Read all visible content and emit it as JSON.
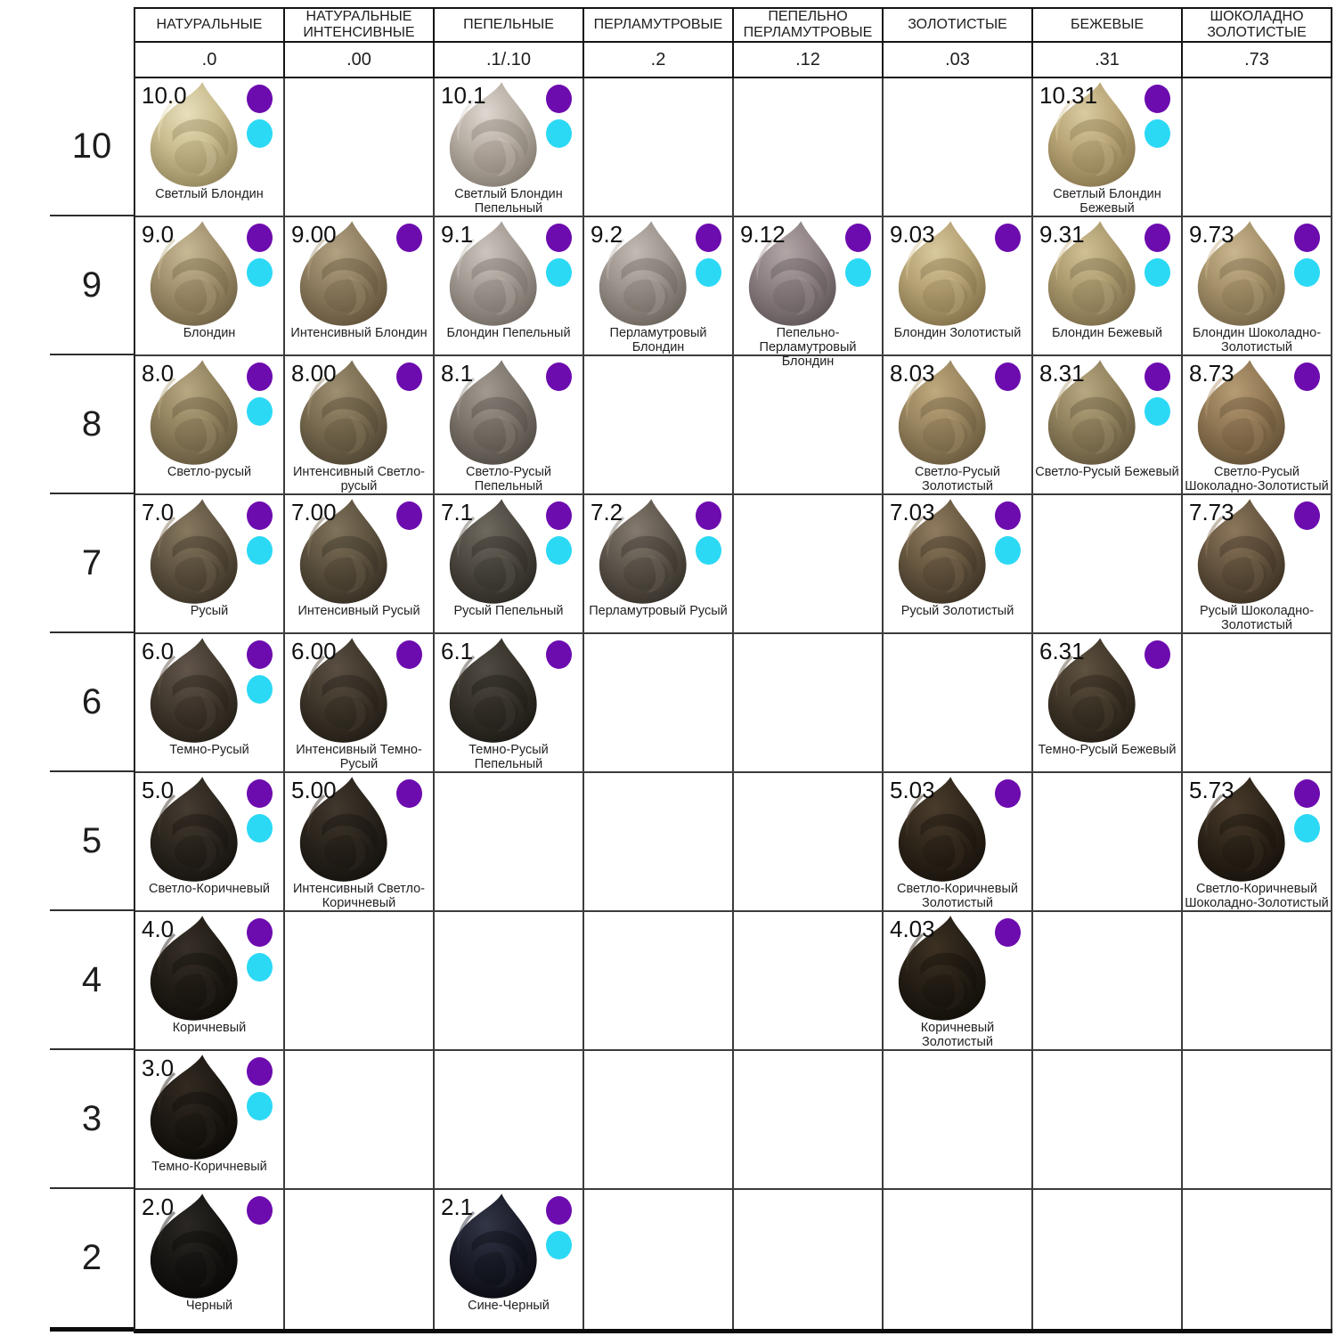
{
  "chart_data": {
    "type": "table",
    "description_visible_text_only": true,
    "dot_colors": {
      "purple": "#6C0BAE",
      "cyan": "#2BD9F5"
    },
    "columns": [
      {
        "family": "НАТУРАЛЬНЫЕ",
        "code": ".0"
      },
      {
        "family": "НАТУРАЛЬНЫЕ ИНТЕНСИВНЫЕ",
        "code": ".00"
      },
      {
        "family": "ПЕПЕЛЬНЫЕ",
        "code": ".1/.10"
      },
      {
        "family": "ПЕРЛАМУТРОВЫЕ",
        "code": ".2"
      },
      {
        "family": "ПЕПЕЛЬНО ПЕРЛАМУТРОВЫЕ",
        "code": ".12"
      },
      {
        "family": "ЗОЛОТИСТЫЕ",
        "code": ".03"
      },
      {
        "family": "БЕЖЕВЫЕ",
        "code": ".31"
      },
      {
        "family": "ШОКОЛАДНО ЗОЛОТИСТЫЕ",
        "code": ".73"
      }
    ],
    "row_levels": [
      "10",
      "9",
      "8",
      "7",
      "6",
      "5",
      "4",
      "3",
      "2"
    ],
    "cells": [
      {
        "level": "10",
        "col": 0,
        "code": "10.0",
        "label": "Светлый Блондин",
        "dots": [
          "purple",
          "cyan"
        ],
        "swatch": {
          "light": "#E8E0BC",
          "base": "#C9BC8F",
          "dark": "#8F8158"
        }
      },
      {
        "level": "10",
        "col": 2,
        "code": "10.1",
        "label": "Светлый Блондин Пепельный",
        "dots": [
          "purple",
          "cyan"
        ],
        "swatch": {
          "light": "#DED8D1",
          "base": "#B8AFA5",
          "dark": "#82796E"
        }
      },
      {
        "level": "10",
        "col": 6,
        "code": "10.31",
        "label": "Светлый Блондин Бежевый",
        "dots": [
          "purple",
          "cyan"
        ],
        "swatch": {
          "light": "#DACBA2",
          "base": "#B9A678",
          "dark": "#85734B"
        }
      },
      {
        "level": "9",
        "col": 0,
        "code": "9.0",
        "label": "Блондин",
        "dots": [
          "purple",
          "cyan"
        ],
        "swatch": {
          "light": "#C8B995",
          "base": "#A3926F",
          "dark": "#6F6143"
        }
      },
      {
        "level": "9",
        "col": 1,
        "code": "9.00",
        "label": "Интенсивный Блондин",
        "dots": [
          "purple"
        ],
        "swatch": {
          "light": "#B2A282",
          "base": "#8F7E61",
          "dark": "#5E5038"
        }
      },
      {
        "level": "9",
        "col": 2,
        "code": "9.1",
        "label": "Блондин Пепельный",
        "dots": [
          "purple",
          "cyan"
        ],
        "swatch": {
          "light": "#CCC5BE",
          "base": "#A49C94",
          "dark": "#6F6860"
        }
      },
      {
        "level": "9",
        "col": 3,
        "code": "9.2",
        "label": "Перламутровый Блондин",
        "dots": [
          "purple",
          "cyan"
        ],
        "swatch": {
          "light": "#C2BAB3",
          "base": "#9C948D",
          "dark": "#686159"
        }
      },
      {
        "level": "9",
        "col": 4,
        "code": "9.12",
        "label": "Пепельно-Перламутровый Блондин",
        "dots": [
          "purple",
          "cyan"
        ],
        "swatch": {
          "light": "#B3A6A7",
          "base": "#8E8183",
          "dark": "#5C5355"
        }
      },
      {
        "level": "9",
        "col": 5,
        "code": "9.03",
        "label": "Блондин Золотистый",
        "dots": [
          "purple"
        ],
        "swatch": {
          "light": "#D9C99E",
          "base": "#B6A375",
          "dark": "#7F6D47"
        }
      },
      {
        "level": "9",
        "col": 6,
        "code": "9.31",
        "label": "Блондин Бежевый",
        "dots": [
          "purple",
          "cyan"
        ],
        "swatch": {
          "light": "#D0C094",
          "base": "#AC9B6F",
          "dark": "#776746"
        }
      },
      {
        "level": "9",
        "col": 7,
        "code": "9.73",
        "label": "Блондин Шоколадно-Золотистый",
        "dots": [
          "purple",
          "cyan"
        ],
        "swatch": {
          "light": "#C9B68E",
          "base": "#A6926A",
          "dark": "#726245"
        }
      },
      {
        "level": "8",
        "col": 0,
        "code": "8.0",
        "label": "Светло-русый",
        "dots": [
          "purple",
          "cyan"
        ],
        "swatch": {
          "light": "#B8A983",
          "base": "#92835F",
          "dark": "#60543B"
        }
      },
      {
        "level": "8",
        "col": 1,
        "code": "8.00",
        "label": "Интенсивный Светло-русый",
        "dots": [
          "purple"
        ],
        "swatch": {
          "light": "#9E8F71",
          "base": "#7B6D52",
          "dark": "#4C4230"
        }
      },
      {
        "level": "8",
        "col": 2,
        "code": "8.1",
        "label": "Светло-Русый Пепельный",
        "dots": [
          "purple"
        ],
        "swatch": {
          "light": "#A29A91",
          "base": "#7E776E",
          "dark": "#4E4841"
        }
      },
      {
        "level": "8",
        "col": 5,
        "code": "8.03",
        "label": "Светло-Русый Золотистый",
        "dots": [
          "purple"
        ],
        "swatch": {
          "light": "#BFA97E",
          "base": "#9A8660",
          "dark": "#66573B"
        }
      },
      {
        "level": "8",
        "col": 6,
        "code": "8.31",
        "label": "Светло-Русый Бежевый",
        "dots": [
          "purple",
          "cyan"
        ],
        "swatch": {
          "light": "#B8A882",
          "base": "#93845F",
          "dark": "#5F533A"
        }
      },
      {
        "level": "8",
        "col": 7,
        "code": "8.73",
        "label": "Светло-Русый Шоколадно-Золотистый",
        "dots": [
          "purple"
        ],
        "swatch": {
          "light": "#B69C74",
          "base": "#927955",
          "dark": "#5F4D34"
        }
      },
      {
        "level": "7",
        "col": 0,
        "code": "7.0",
        "label": "Русый",
        "dots": [
          "purple",
          "cyan"
        ],
        "swatch": {
          "light": "#87785F",
          "base": "#645845",
          "dark": "#372F23"
        }
      },
      {
        "level": "7",
        "col": 1,
        "code": "7.00",
        "label": "Интенсивный Русый",
        "dots": [
          "purple"
        ],
        "swatch": {
          "light": "#80735B",
          "base": "#5E5340",
          "dark": "#332C21"
        }
      },
      {
        "level": "7",
        "col": 2,
        "code": "7.1",
        "label": "Русый Пепельный",
        "dots": [
          "purple",
          "cyan"
        ],
        "swatch": {
          "light": "#6F6A60",
          "base": "#4F4A42",
          "dark": "#292620"
        }
      },
      {
        "level": "7",
        "col": 3,
        "code": "7.2",
        "label": "Перламутровый Русый",
        "dots": [
          "purple",
          "cyan"
        ],
        "swatch": {
          "light": "#847A6F",
          "base": "#60584E",
          "dark": "#332E27"
        }
      },
      {
        "level": "7",
        "col": 5,
        "code": "7.03",
        "label": "Русый Золотистый",
        "dots": [
          "purple",
          "cyan"
        ],
        "swatch": {
          "light": "#907C60",
          "base": "#6A5A42",
          "dark": "#3A3023"
        }
      },
      {
        "level": "7",
        "col": 7,
        "code": "7.73",
        "label": "Русый Шоколадно-Золотистый",
        "dots": [
          "purple"
        ],
        "swatch": {
          "light": "#8C775B",
          "base": "#685741",
          "dark": "#392E21"
        }
      },
      {
        "level": "6",
        "col": 0,
        "code": "6.0",
        "label": "Темно-Русый",
        "dots": [
          "purple",
          "cyan"
        ],
        "swatch": {
          "light": "#61554A",
          "base": "#453C31",
          "dark": "#221D16"
        }
      },
      {
        "level": "6",
        "col": 1,
        "code": "6.00",
        "label": "Интенсивный Темно-Русый",
        "dots": [
          "purple"
        ],
        "swatch": {
          "light": "#5A4F42",
          "base": "#40382C",
          "dark": "#1F1A14"
        }
      },
      {
        "level": "6",
        "col": 2,
        "code": "6.1",
        "label": "Темно-Русый Пепельный",
        "dots": [
          "purple"
        ],
        "swatch": {
          "light": "#4F4A42",
          "base": "#38342C",
          "dark": "#1B1813"
        }
      },
      {
        "level": "6",
        "col": 6,
        "code": "6.31",
        "label": "Темно-Русый Бежевый",
        "dots": [
          "purple"
        ],
        "swatch": {
          "light": "#5E5240",
          "base": "#43392B",
          "dark": "#211B13"
        }
      },
      {
        "level": "5",
        "col": 0,
        "code": "5.0",
        "label": "Светло-Коричневый",
        "dots": [
          "purple",
          "cyan"
        ],
        "swatch": {
          "light": "#453C32",
          "base": "#2E2820",
          "dark": "#14110D"
        }
      },
      {
        "level": "5",
        "col": 1,
        "code": "5.00",
        "label": "Интенсивный Светло-Коричневый",
        "dots": [
          "purple"
        ],
        "swatch": {
          "light": "#41382E",
          "base": "#2B251D",
          "dark": "#13100C"
        }
      },
      {
        "level": "5",
        "col": 5,
        "code": "5.03",
        "label": "Светло-Коричневый Золотистый",
        "dots": [
          "purple"
        ],
        "swatch": {
          "light": "#4A3C2C",
          "base": "#31281C",
          "dark": "#16110B"
        }
      },
      {
        "level": "5",
        "col": 7,
        "code": "5.73",
        "label": "Светло-Коричневый Шоколадно-Золотистый",
        "dots": [
          "purple",
          "cyan"
        ],
        "swatch": {
          "light": "#483A2B",
          "base": "#30271B",
          "dark": "#15100B"
        }
      },
      {
        "level": "4",
        "col": 0,
        "code": "4.0",
        "label": "Коричневый",
        "dots": [
          "purple",
          "cyan"
        ],
        "swatch": {
          "light": "#373028",
          "base": "#231E17",
          "dark": "#0E0C08"
        }
      },
      {
        "level": "4",
        "col": 5,
        "code": "4.03",
        "label": "Коричневый Золотистый",
        "dots": [
          "purple"
        ],
        "swatch": {
          "light": "#3C3122",
          "base": "#272017",
          "dark": "#100D08"
        }
      },
      {
        "level": "3",
        "col": 0,
        "code": "3.0",
        "label": "Темно-Коричневый",
        "dots": [
          "purple",
          "cyan"
        ],
        "swatch": {
          "light": "#332B22",
          "base": "#1F1A14",
          "dark": "#0C0A07"
        }
      },
      {
        "level": "2",
        "col": 0,
        "code": "2.0",
        "label": "Черный",
        "dots": [
          "purple"
        ],
        "swatch": {
          "light": "#2B2824",
          "base": "#191714",
          "dark": "#080706"
        }
      },
      {
        "level": "2",
        "col": 2,
        "code": "2.1",
        "label": "Сине-Черный",
        "dots": [
          "purple",
          "cyan"
        ],
        "swatch": {
          "light": "#323646",
          "base": "#1C1E2B",
          "dark": "#090A10"
        }
      }
    ]
  }
}
